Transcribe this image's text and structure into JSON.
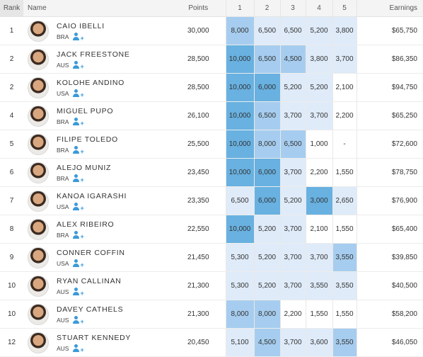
{
  "colors": {
    "heat_top": "#68b1e1",
    "heat_mid": "#a6cdef",
    "heat_low": "#dfebf9"
  },
  "header": {
    "rank": "Rank",
    "name": "Name",
    "points": "Points",
    "h1": "1",
    "h2": "2",
    "h3": "3",
    "h4": "4",
    "h5": "5",
    "earnings": "Earnings"
  },
  "rows": [
    {
      "rank": "1",
      "name": "CAIO IBELLI",
      "country": "BRA",
      "points": "30,000",
      "r1": "8,000",
      "r2": "6,500",
      "r3": "6,500",
      "r4": "5,200",
      "r5": "3,800",
      "earnings": "$65,750",
      "tones": [
        2,
        3,
        3,
        3,
        3
      ]
    },
    {
      "rank": "2",
      "name": "JACK FREESTONE",
      "country": "AUS",
      "points": "28,500",
      "r1": "10,000",
      "r2": "6,500",
      "r3": "4,500",
      "r4": "3,800",
      "r5": "3,700",
      "earnings": "$86,350",
      "tones": [
        1,
        2,
        2,
        3,
        3
      ]
    },
    {
      "rank": "2",
      "name": "KOLOHE ANDINO",
      "country": "USA",
      "points": "28,500",
      "r1": "10,000",
      "r2": "6,000",
      "r3": "5,200",
      "r4": "5,200",
      "r5": "2,100",
      "earnings": "$94,750",
      "tones": [
        1,
        1,
        3,
        3,
        0
      ]
    },
    {
      "rank": "4",
      "name": "MIGUEL PUPO",
      "country": "BRA",
      "points": "26,100",
      "r1": "10,000",
      "r2": "6,500",
      "r3": "3,700",
      "r4": "3,700",
      "r5": "2,200",
      "earnings": "$65,250",
      "tones": [
        1,
        2,
        3,
        3,
        0
      ]
    },
    {
      "rank": "5",
      "name": "FILIPE TOLEDO",
      "country": "BRA",
      "points": "25,500",
      "r1": "10,000",
      "r2": "8,000",
      "r3": "6,500",
      "r4": "1,000",
      "r5": "-",
      "earnings": "$72,600",
      "tones": [
        1,
        2,
        2,
        0,
        0
      ]
    },
    {
      "rank": "6",
      "name": "ALEJO MUNIZ",
      "country": "BRA",
      "points": "23,450",
      "r1": "10,000",
      "r2": "6,000",
      "r3": "3,700",
      "r4": "2,200",
      "r5": "1,550",
      "earnings": "$78,750",
      "tones": [
        1,
        1,
        3,
        0,
        0
      ]
    },
    {
      "rank": "7",
      "name": "KANOA IGARASHI",
      "country": "USA",
      "points": "23,350",
      "r1": "6,500",
      "r2": "6,000",
      "r3": "5,200",
      "r4": "3,000",
      "r5": "2,650",
      "earnings": "$76,900",
      "tones": [
        3,
        1,
        3,
        1,
        3
      ]
    },
    {
      "rank": "8",
      "name": "ALEX RIBEIRO",
      "country": "BRA",
      "points": "22,550",
      "r1": "10,000",
      "r2": "5,200",
      "r3": "3,700",
      "r4": "2,100",
      "r5": "1,550",
      "earnings": "$65,400",
      "tones": [
        1,
        3,
        3,
        0,
        0
      ]
    },
    {
      "rank": "9",
      "name": "CONNER COFFIN",
      "country": "USA",
      "points": "21,450",
      "r1": "5,300",
      "r2": "5,200",
      "r3": "3,700",
      "r4": "3,700",
      "r5": "3,550",
      "earnings": "$39,850",
      "tones": [
        3,
        3,
        3,
        3,
        2
      ]
    },
    {
      "rank": "10",
      "name": "RYAN CALLINAN",
      "country": "AUS",
      "points": "21,300",
      "r1": "5,300",
      "r2": "5,200",
      "r3": "3,700",
      "r4": "3,550",
      "r5": "3,550",
      "earnings": "$40,500",
      "tones": [
        3,
        3,
        3,
        3,
        3
      ]
    },
    {
      "rank": "10",
      "name": "DAVEY CATHELS",
      "country": "AUS",
      "points": "21,300",
      "r1": "8,000",
      "r2": "8,000",
      "r3": "2,200",
      "r4": "1,550",
      "r5": "1,550",
      "earnings": "$58,200",
      "tones": [
        2,
        2,
        0,
        0,
        0
      ]
    },
    {
      "rank": "12",
      "name": "STUART KENNEDY",
      "country": "AUS",
      "points": "20,450",
      "r1": "5,100",
      "r2": "4,500",
      "r3": "3,700",
      "r4": "3,600",
      "r5": "3,550",
      "earnings": "$46,050",
      "tones": [
        3,
        2,
        3,
        3,
        2
      ]
    }
  ]
}
